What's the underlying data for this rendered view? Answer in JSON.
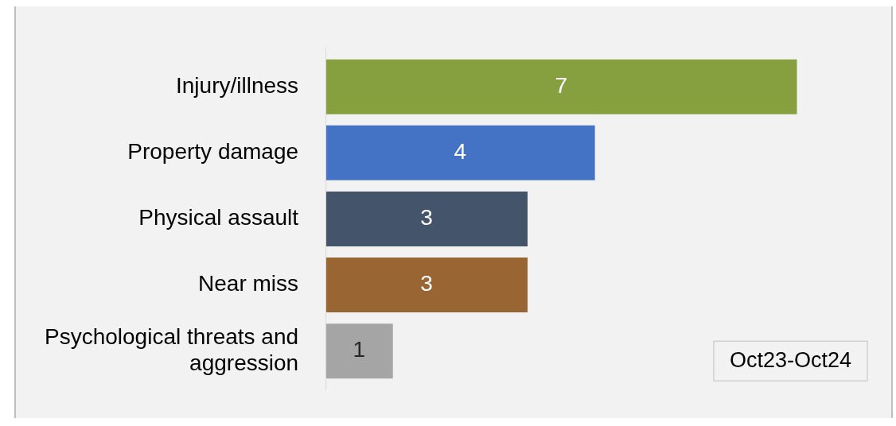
{
  "chart_data": {
    "type": "bar",
    "orientation": "horizontal",
    "categories": [
      "Injury/illness",
      "Property damage",
      "Physical assault",
      "Near miss",
      "Psychological threats and aggression"
    ],
    "values": [
      7,
      4,
      3,
      3,
      1
    ],
    "colors": [
      "#86a03f",
      "#4472c4",
      "#44546a",
      "#996633",
      "#a5a5a5"
    ],
    "data_labels": true,
    "annotations": [
      "Oct23-Oct24"
    ]
  }
}
